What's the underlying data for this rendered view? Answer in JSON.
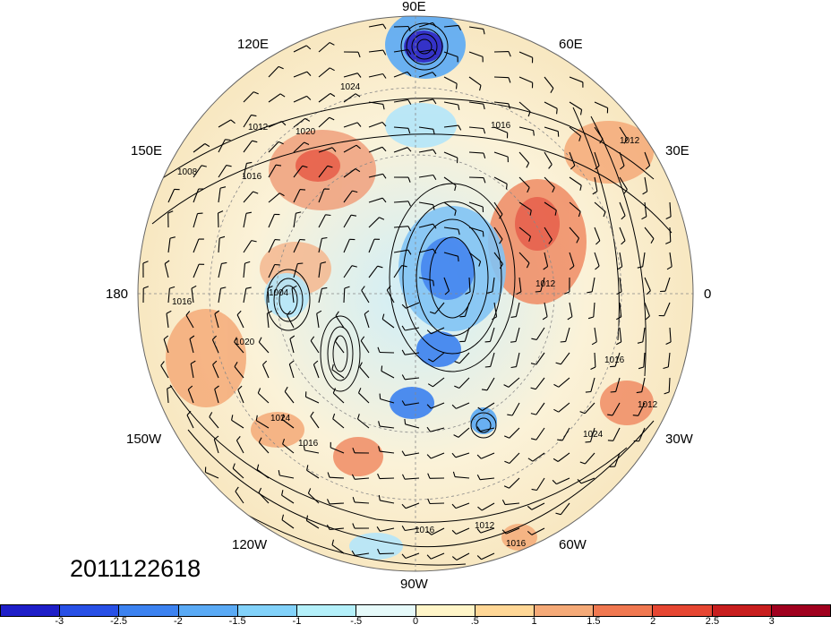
{
  "map": {
    "projection": "north-polar-stereographic",
    "longitude_labels": {
      "top": "90E",
      "upper_left_1": "120E",
      "upper_right_1": "60E",
      "upper_left_2": "150E",
      "upper_right_2": "30E",
      "left": "180",
      "right": "0",
      "lower_left_2": "150W",
      "lower_right_2": "30W",
      "lower_left_1": "120W",
      "lower_right_1": "60W",
      "bottom": "90W"
    },
    "contour_labels": [
      "1008",
      "1012",
      "1016",
      "1020",
      "1024",
      "1016",
      "1012",
      "1004",
      "1016",
      "1020",
      "1024",
      "1016",
      "1012",
      "1016",
      "1024",
      "1012",
      "1016",
      "1012",
      "1016"
    ]
  },
  "timestamp": "2011122618",
  "colorbar": {
    "colors": [
      "#1e1ec8",
      "#2850e6",
      "#3c82f0",
      "#5aaaf5",
      "#82d2fa",
      "#b4f0fa",
      "#e6fafa",
      "#fff5c8",
      "#ffd796",
      "#f5aa78",
      "#f07850",
      "#e64632",
      "#c81e1e",
      "#a0001e"
    ],
    "tick_labels": [
      "-3",
      "-2.5",
      "-2",
      "-1.5",
      "-1",
      "-.5",
      "0",
      ".5",
      "1",
      "1.5",
      "2",
      "2.5",
      "3"
    ]
  }
}
